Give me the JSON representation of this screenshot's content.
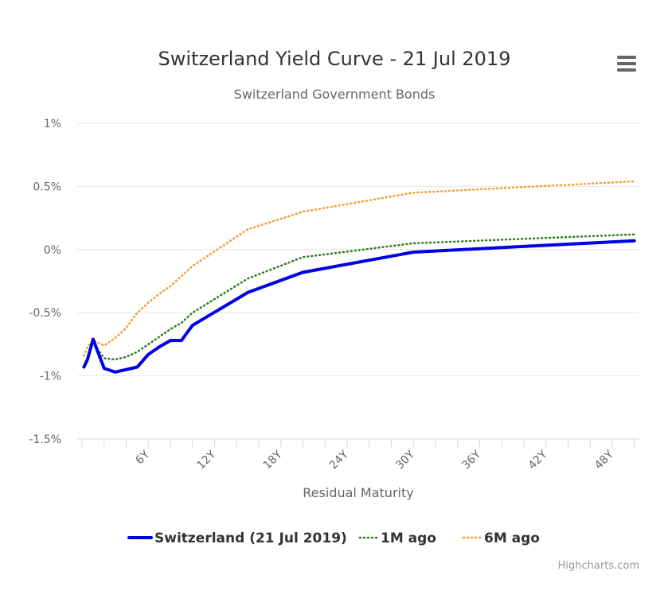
{
  "header": {
    "title": "Switzerland Yield Curve - 21 Jul 2019",
    "subtitle": "Switzerland Government Bonds"
  },
  "menu_icon": "hamburger-menu-icon",
  "credits": "Highcharts.com",
  "chart_data": {
    "type": "line",
    "title": "Switzerland Yield Curve - 21 Jul 2019",
    "subtitle": "Switzerland Government Bonds",
    "xlabel": "Residual Maturity",
    "ylabel": "",
    "xlim": [
      0,
      50
    ],
    "ylim": [
      -1.5,
      1
    ],
    "y_ticks": [
      1,
      0.5,
      0,
      -0.5,
      -1,
      -1.5
    ],
    "y_tick_labels": [
      "1%",
      "0.5%",
      "0%",
      "-0.5%",
      "-1%",
      "-1.5%"
    ],
    "x_ticks": [
      6,
      12,
      18,
      24,
      30,
      36,
      42,
      48
    ],
    "x_tick_labels": [
      "6Y",
      "12Y",
      "18Y",
      "24Y",
      "30Y",
      "36Y",
      "42Y",
      "48Y"
    ],
    "grid": true,
    "legend_position": "bottom-center",
    "series": [
      {
        "name": "Switzerland (21 Jul 2019)",
        "color": "#0000e6",
        "style": "solid",
        "x": [
          0.17,
          0.5,
          1,
          2,
          3,
          4,
          5,
          6,
          7,
          8,
          9,
          10,
          15,
          20,
          30,
          50
        ],
        "y": [
          -0.93,
          -0.87,
          -0.71,
          -0.94,
          -0.97,
          -0.95,
          -0.93,
          -0.83,
          -0.77,
          -0.72,
          -0.72,
          -0.6,
          -0.34,
          -0.18,
          -0.02,
          0.07
        ]
      },
      {
        "name": "1M ago",
        "color": "#2e7d1e",
        "style": "dotted",
        "x": [
          0.17,
          0.5,
          1,
          2,
          3,
          4,
          5,
          6,
          7,
          8,
          9,
          10,
          15,
          20,
          30,
          50
        ],
        "y": [
          -0.92,
          -0.86,
          -0.74,
          -0.86,
          -0.87,
          -0.85,
          -0.81,
          -0.75,
          -0.69,
          -0.63,
          -0.58,
          -0.5,
          -0.23,
          -0.06,
          0.05,
          0.12
        ]
      },
      {
        "name": "6M ago",
        "color": "#f0a030",
        "style": "dotted",
        "x": [
          0.17,
          0.5,
          1,
          2,
          3,
          4,
          5,
          6,
          7,
          8,
          9,
          10,
          15,
          20,
          30,
          50
        ],
        "y": [
          -0.84,
          -0.77,
          -0.72,
          -0.76,
          -0.7,
          -0.62,
          -0.5,
          -0.42,
          -0.35,
          -0.29,
          -0.21,
          -0.13,
          0.16,
          0.3,
          0.45,
          0.54
        ]
      }
    ]
  }
}
